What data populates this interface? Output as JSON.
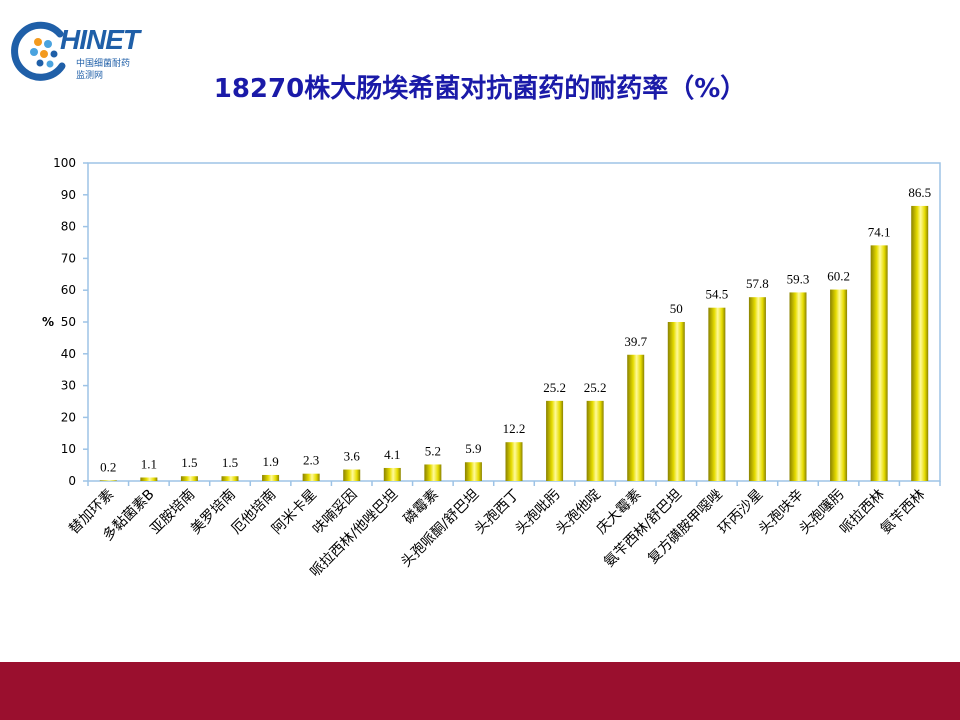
{
  "logo": {
    "word": "HINET",
    "sub_line1": "中国细菌耐药",
    "sub_line2": "监测网",
    "colors": {
      "blue": "#1f5fa8",
      "orange": "#f39a1e",
      "light_blue": "#4aa3df"
    }
  },
  "title": "18270株大肠埃希菌对抗菌药的耐药率（%）",
  "colors": {
    "bar": "#e6dc00",
    "bar_edge": "#8a8200",
    "bar_highlight": "#fffa9a",
    "axis": "#9dc3e6",
    "title": "#1a1aa8",
    "footer": "#9a0f2e"
  },
  "chart_data": {
    "type": "bar",
    "title": "18270株大肠埃希菌对抗菌药的耐药率（%）",
    "xlabel": "",
    "ylabel": "%",
    "ylim": [
      0,
      100
    ],
    "yticks": [
      0,
      10,
      20,
      30,
      40,
      50,
      60,
      70,
      80,
      90,
      100
    ],
    "grid": false,
    "legend": "none",
    "categories": [
      "替加环素",
      "多黏菌素B",
      "亚胺培南",
      "美罗培南",
      "厄他培南",
      "阿米卡星",
      "呋喃妥因",
      "哌拉西林/他唑巴坦",
      "磷霉素",
      "头孢哌酮/舒巴坦",
      "头孢西丁",
      "头孢吡肟",
      "头孢他啶",
      "庆大霉素",
      "氨苄西林/舒巴坦",
      "复方磺胺甲噁唑",
      "环丙沙星",
      "头孢呋辛",
      "头孢噻肟",
      "哌拉西林",
      "氨苄西林"
    ],
    "values": [
      0.2,
      1.1,
      1.5,
      1.5,
      1.9,
      2.3,
      3.6,
      4.1,
      5.2,
      5.9,
      12.2,
      25.2,
      25.2,
      39.7,
      50,
      54.5,
      57.8,
      59.3,
      60.2,
      74.1,
      86.5
    ]
  }
}
